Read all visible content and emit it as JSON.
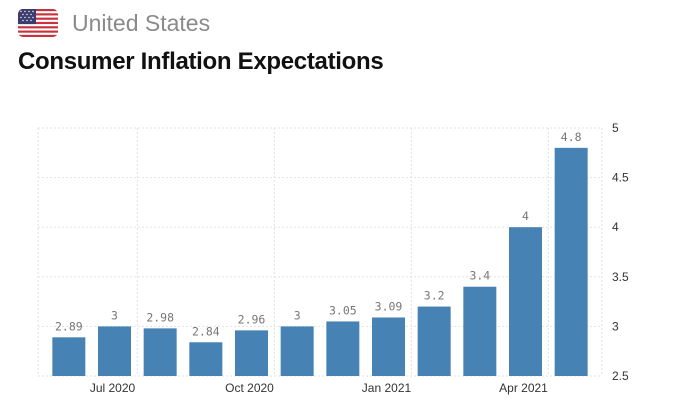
{
  "header": {
    "country": "United States",
    "flag_icon": "us-flag-icon"
  },
  "colors": {
    "bar": "#4682b4",
    "grid": "#e2e2e2",
    "axis_text": "#333333",
    "label_text": "#777777"
  },
  "chart_data": {
    "type": "bar",
    "title": "Consumer Inflation Expectations",
    "categories": [
      "Jun 2020",
      "Jul 2020",
      "Aug 2020",
      "Sep 2020",
      "Oct 2020",
      "Nov 2020",
      "Dec 2020",
      "Jan 2021",
      "Feb 2021",
      "Mar 2021",
      "Apr 2021",
      "May 2021"
    ],
    "values": [
      2.89,
      3,
      2.98,
      2.84,
      2.96,
      3,
      3.05,
      3.09,
      3.2,
      3.4,
      4,
      4.8
    ],
    "data_labels": [
      "2.89",
      "3",
      "2.98",
      "2.84",
      "2.96",
      "3",
      "3.05",
      "3.09",
      "3.2",
      "3.4",
      "4",
      "4.8"
    ],
    "x_ticks": [
      "Jul 2020",
      "Oct 2020",
      "Jan 2021",
      "Apr 2021"
    ],
    "y_ticks": [
      "2.5",
      "3",
      "3.5",
      "4",
      "4.5",
      "5"
    ],
    "ylim": [
      2.5,
      5
    ],
    "y_axis_side": "right",
    "grid": true,
    "xlabel": "",
    "ylabel": ""
  }
}
